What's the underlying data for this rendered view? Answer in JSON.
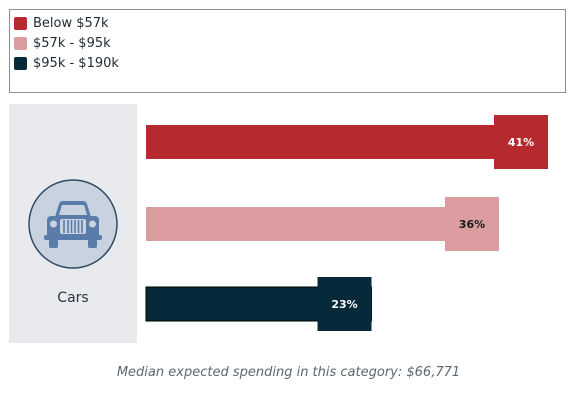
{
  "chart_data": {
    "type": "bar",
    "orientation": "horizontal",
    "categories": [
      "Cars"
    ],
    "series": [
      {
        "name": "Below $57k",
        "values": [
          41
        ],
        "color": "#b5292f",
        "label": "41%",
        "label_color": "#ffffff"
      },
      {
        "name": "$57k - $95k",
        "values": [
          36
        ],
        "color": "#db9da0",
        "label": "36%",
        "label_color": "#1a1a1a"
      },
      {
        "name": "$95k - $190k",
        "values": [
          23
        ],
        "color": "#062a3a",
        "label": "23%",
        "label_color": "#ffffff"
      }
    ],
    "xlim": [
      0,
      41
    ],
    "grid": false,
    "legend": "top"
  },
  "legend": {
    "items": [
      {
        "label": "Below $57k",
        "color": "#b5292f"
      },
      {
        "label": "$57k - $95k",
        "color": "#db9da0"
      },
      {
        "label": "$95k - $190k",
        "color": "#062a3a"
      }
    ]
  },
  "category": {
    "label": "Cars",
    "icon": "car-icon"
  },
  "footnote": "Median expected spending in this category: $66,771"
}
